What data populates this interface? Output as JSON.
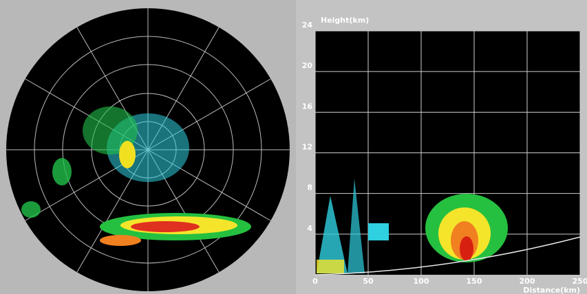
{
  "chart_data": {
    "type": "rhi",
    "y_label": "Height(km)",
    "x_label": "Distance(km)",
    "xlim": [
      0,
      250
    ],
    "ylim": [
      0,
      24
    ],
    "xticks": [
      0,
      50,
      100,
      150,
      200,
      250
    ],
    "yticks": [
      4,
      8,
      12,
      16,
      20,
      24
    ],
    "grid": true
  }
}
